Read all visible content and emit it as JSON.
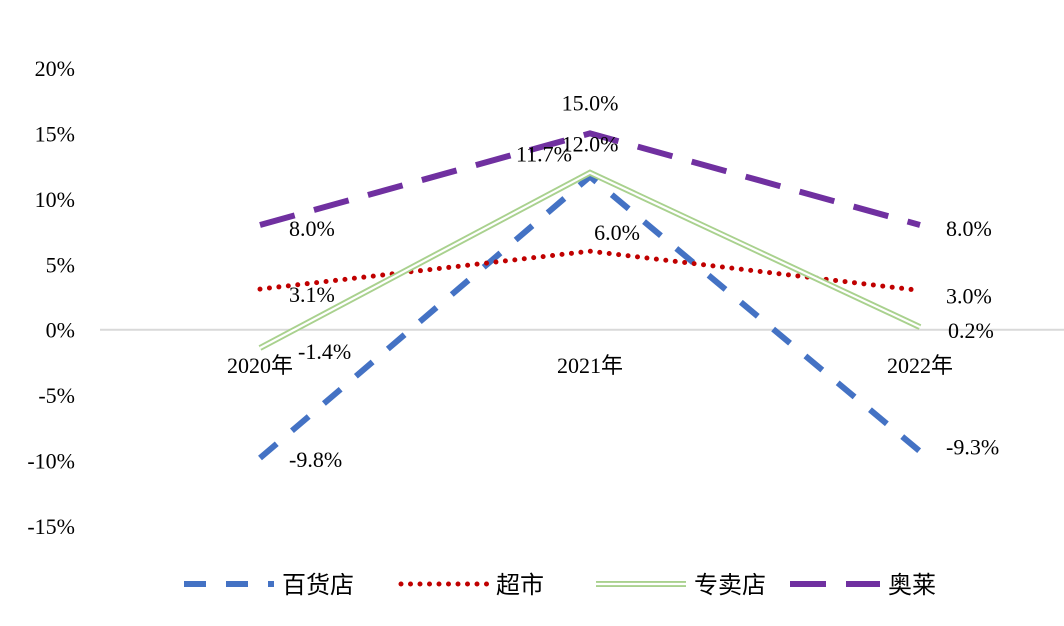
{
  "chart_data": {
    "type": "line",
    "categories": [
      "2020年",
      "2021年",
      "2022年"
    ],
    "y_ticks": [
      "20%",
      "15%",
      "10%",
      "5%",
      "0%",
      "-5%",
      "-10%",
      "-15%"
    ],
    "ylim": [
      -15,
      20
    ],
    "grid": false,
    "legend_position": "bottom",
    "series": [
      {
        "name": "百货店",
        "values": [
          -9.8,
          11.7,
          -9.3
        ],
        "labels": [
          "-9.8%",
          "11.7%",
          "-9.3%"
        ],
        "color": "#4472C4",
        "style": "dashed"
      },
      {
        "name": "超市",
        "values": [
          3.1,
          6.0,
          3.0
        ],
        "labels": [
          "3.1%",
          "6.0%",
          "3.0%"
        ],
        "color": "#C00000",
        "style": "dotted"
      },
      {
        "name": "专卖店",
        "values": [
          -1.4,
          12.0,
          0.2
        ],
        "labels": [
          "-1.4%",
          "12.0%",
          "0.2%"
        ],
        "color": "#A9D18E",
        "style": "double"
      },
      {
        "name": "奥莱",
        "values": [
          8.0,
          15.0,
          8.0
        ],
        "labels": [
          "8.0%",
          "15.0%",
          "8.0%"
        ],
        "color": "#7030A0",
        "style": "long-dash"
      }
    ]
  }
}
